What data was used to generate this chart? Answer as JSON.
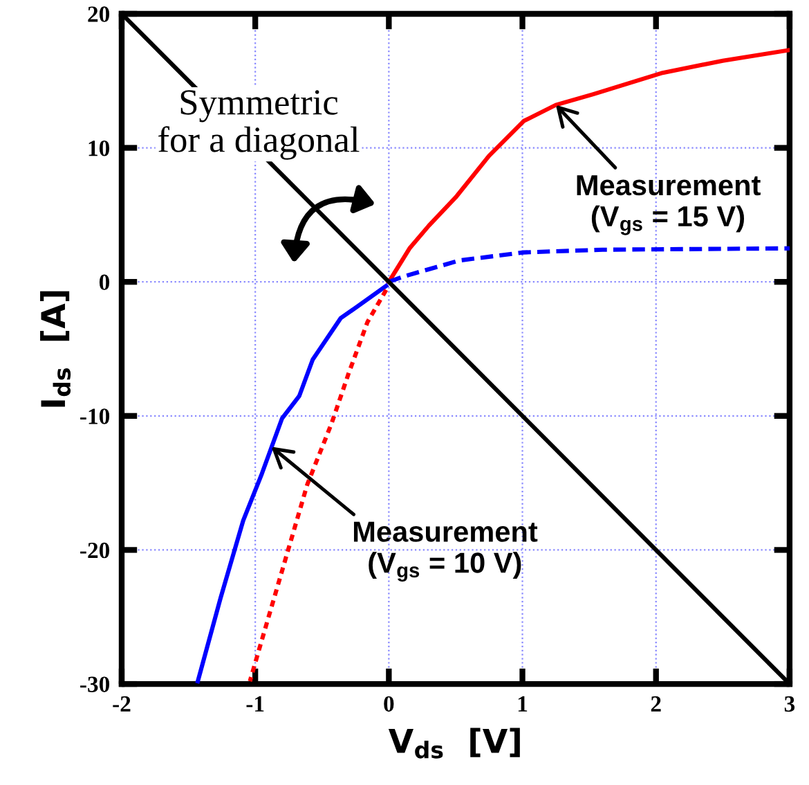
{
  "chart_data": {
    "type": "line",
    "xlabel": "V$_{ds}$  [V]",
    "ylabel": "I$_{ds}$  [A]",
    "xlim": [
      -2,
      3
    ],
    "ylim": [
      -30,
      20
    ],
    "xticks": [
      -2,
      -1,
      0,
      1,
      2,
      3
    ],
    "yticks": [
      -30,
      -20,
      -10,
      0,
      10,
      20
    ],
    "grid": true,
    "marker": "none",
    "series": [
      {
        "color": "#ff0000",
        "line_style": "solid",
        "x": [
          0,
          0.155,
          0.3,
          0.5,
          0.75,
          1.01,
          1.25,
          1.53,
          2.05,
          2.5,
          3
        ],
        "values": [
          0,
          2.5,
          4.2,
          6.3,
          9.4,
          12.0,
          13.2,
          14.0,
          15.6,
          16.5,
          17.3
        ]
      },
      {
        "color": "#0000ff",
        "line_style": "dashed",
        "x": [
          0,
          0.11,
          0.53,
          1.01,
          1.6,
          3
        ],
        "values": [
          0,
          0.4,
          1.6,
          2.2,
          2.4,
          2.5
        ]
      },
      {
        "color": "#0000ff",
        "line_style": "solid",
        "x": [
          -0.02,
          -0.23,
          -0.36,
          -0.57,
          -0.67,
          -0.8,
          -0.95,
          -1.09,
          -1.26,
          -1.43
        ],
        "values": [
          -0.3,
          -1.8,
          -2.7,
          -5.8,
          -8.5,
          -10.2,
          -14.3,
          -17.8,
          -23.6,
          -29.8
        ]
      },
      {
        "color": "#ff0000",
        "line_style": "dotted",
        "x": [
          -0.02,
          -0.16,
          -0.3,
          -0.43,
          -0.61,
          -0.78,
          -0.95,
          -1.04
        ],
        "values": [
          -0.6,
          -3.0,
          -6.8,
          -10.6,
          -15.1,
          -20.9,
          -26.7,
          -29.8
        ]
      },
      {
        "color": "#000000",
        "line_style": "solid",
        "x": [
          -2,
          3
        ],
        "values": [
          20,
          -30
        ]
      }
    ],
    "annotations": [
      "Symmetric\nfor a diagonal",
      {
        "text": "Measurement\n(V$_{gs}$ = 15 V)",
        "x": 1.25,
        "y": 13.2
      },
      {
        "text": "Measurement\n(V$_{gs}$ = 10 V)",
        "x": -0.88,
        "y": -12.3
      }
    ]
  }
}
